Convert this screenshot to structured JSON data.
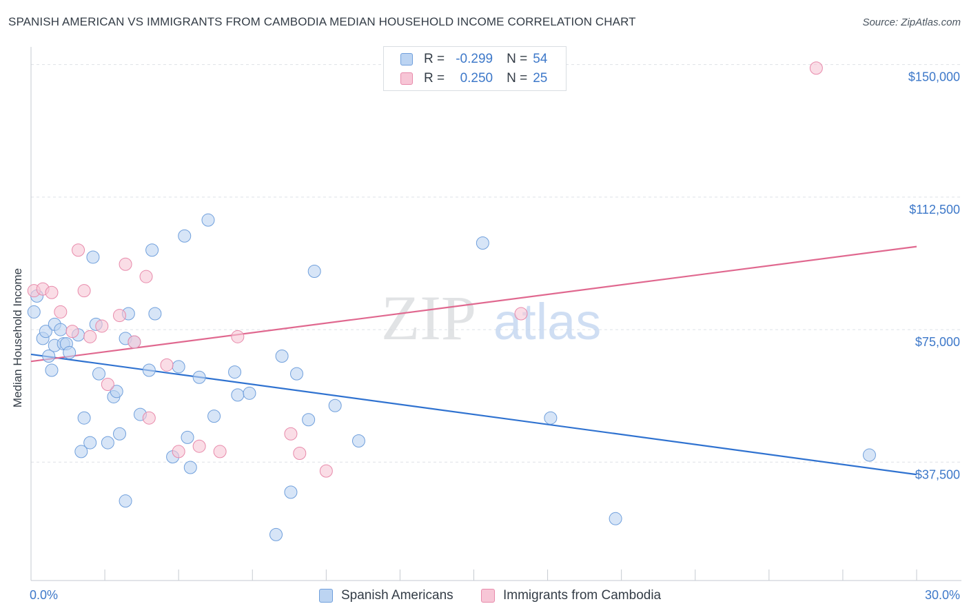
{
  "header": {
    "title": "SPANISH AMERICAN VS IMMIGRANTS FROM CAMBODIA MEDIAN HOUSEHOLD INCOME CORRELATION CHART",
    "source": "Source: ZipAtlas.com"
  },
  "watermark": {
    "zip": "ZIP",
    "atlas": "atlas"
  },
  "legend_top": {
    "rows": [
      {
        "r_label": "R =",
        "r_value": "-0.299",
        "n_label": "N =",
        "n_value": "54"
      },
      {
        "r_label": "R =",
        "r_value": "0.250",
        "n_label": "N =",
        "n_value": "25"
      }
    ]
  },
  "colors": {
    "blue_fill": "#bcd4f2",
    "blue_stroke": "#6f9fdc",
    "blue_line": "#2f72d0",
    "pink_fill": "#f7c6d6",
    "pink_stroke": "#e889aa",
    "pink_line": "#e0688f",
    "tick_label": "#3d78c9",
    "grid": "#dde1e6"
  },
  "chart_data": {
    "type": "scatter",
    "ylabel": "Median Household Income",
    "x_tick_labels": {
      "min": "0.0%",
      "max": "30.0%"
    },
    "y_tick_labels": [
      "$37,500",
      "$75,000",
      "$112,500",
      "$150,000"
    ],
    "xlim": [
      0,
      30
    ],
    "ylim": [
      4000,
      155000
    ],
    "y_ticks": [
      37500,
      75000,
      112500,
      150000
    ],
    "grid": true,
    "legend_placement": "bottom-center",
    "series": [
      {
        "name": "Spanish Americans",
        "r": -0.299,
        "n": 54,
        "trend": {
          "x": [
            0,
            30
          ],
          "y": [
            68000,
            34000
          ]
        },
        "points": [
          [
            0.1,
            80000
          ],
          [
            0.2,
            84500
          ],
          [
            0.4,
            72500
          ],
          [
            0.5,
            74500
          ],
          [
            0.6,
            67500
          ],
          [
            0.7,
            63500
          ],
          [
            0.8,
            76500
          ],
          [
            0.8,
            70500
          ],
          [
            1.0,
            75000
          ],
          [
            1.1,
            71000
          ],
          [
            1.2,
            71000
          ],
          [
            1.3,
            68500
          ],
          [
            1.6,
            73500
          ],
          [
            1.7,
            40500
          ],
          [
            1.8,
            50000
          ],
          [
            2.0,
            43000
          ],
          [
            2.1,
            95500
          ],
          [
            2.2,
            76500
          ],
          [
            2.3,
            62500
          ],
          [
            2.6,
            43000
          ],
          [
            2.8,
            56000
          ],
          [
            2.9,
            57500
          ],
          [
            3.0,
            45500
          ],
          [
            3.2,
            72500
          ],
          [
            3.2,
            26500
          ],
          [
            3.3,
            79500
          ],
          [
            3.5,
            71500
          ],
          [
            3.7,
            51000
          ],
          [
            4.0,
            63500
          ],
          [
            4.1,
            97500
          ],
          [
            4.2,
            79500
          ],
          [
            4.8,
            39000
          ],
          [
            5.0,
            64500
          ],
          [
            5.2,
            101500
          ],
          [
            5.3,
            44500
          ],
          [
            5.4,
            36000
          ],
          [
            5.7,
            61500
          ],
          [
            6.0,
            106000
          ],
          [
            6.2,
            50500
          ],
          [
            6.9,
            63000
          ],
          [
            7.0,
            56500
          ],
          [
            7.4,
            57000
          ],
          [
            8.3,
            17000
          ],
          [
            8.5,
            67500
          ],
          [
            8.8,
            29000
          ],
          [
            9.0,
            62500
          ],
          [
            9.4,
            49500
          ],
          [
            9.6,
            91500
          ],
          [
            10.3,
            53500
          ],
          [
            11.1,
            43500
          ],
          [
            15.3,
            99500
          ],
          [
            17.6,
            50000
          ],
          [
            19.8,
            21500
          ],
          [
            28.4,
            39500
          ]
        ]
      },
      {
        "name": "Immigrants from Cambodia",
        "r": 0.25,
        "n": 25,
        "trend": {
          "x": [
            0,
            30
          ],
          "y": [
            66000,
            98500
          ]
        },
        "points": [
          [
            0.1,
            86000
          ],
          [
            0.4,
            86500
          ],
          [
            0.7,
            85500
          ],
          [
            1.0,
            80000
          ],
          [
            1.4,
            74500
          ],
          [
            1.6,
            97500
          ],
          [
            1.8,
            86000
          ],
          [
            2.0,
            73000
          ],
          [
            2.4,
            76000
          ],
          [
            2.6,
            59500
          ],
          [
            3.0,
            79000
          ],
          [
            3.2,
            93500
          ],
          [
            3.5,
            71500
          ],
          [
            3.9,
            90000
          ],
          [
            4.0,
            50000
          ],
          [
            4.6,
            65000
          ],
          [
            5.0,
            40500
          ],
          [
            5.7,
            42000
          ],
          [
            6.4,
            40500
          ],
          [
            7.0,
            73000
          ],
          [
            8.8,
            45500
          ],
          [
            9.1,
            40000
          ],
          [
            10.0,
            35000
          ],
          [
            16.6,
            79500
          ],
          [
            26.6,
            149000
          ]
        ]
      }
    ]
  }
}
